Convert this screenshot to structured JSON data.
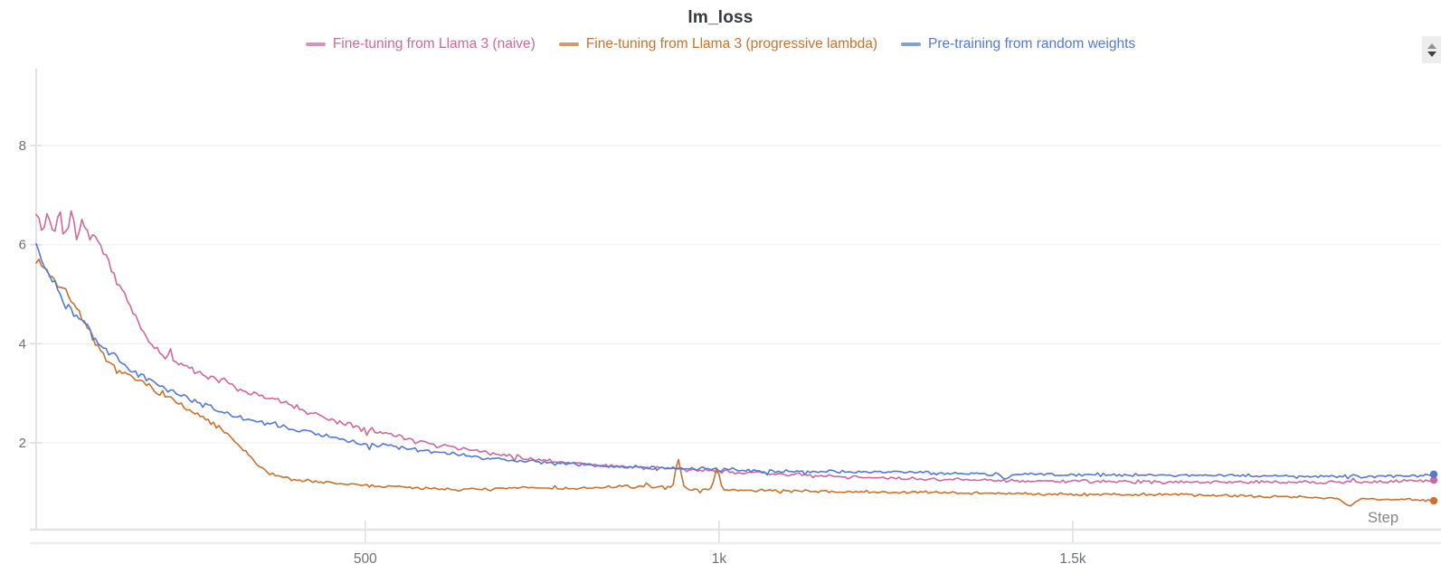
{
  "title": "lm_loss",
  "legend": [
    {
      "label": "Fine-tuning from Llama 3 (naive)",
      "color": "#CF689C"
    },
    {
      "label": "Fine-tuning from Llama 3 (progressive lambda)",
      "color": "#C9722E"
    },
    {
      "label": "Pre-training from random weights",
      "color": "#5379D5"
    }
  ],
  "icons": {
    "stepper": "up-down-arrows"
  },
  "chart_data": {
    "type": "line",
    "title": "lm_loss",
    "xlabel": "Step",
    "ylabel": "",
    "grid": "horizontal",
    "legend_position": "top-center",
    "x_axis": {
      "range": [
        35,
        2010
      ],
      "ticks": [
        {
          "value": 500,
          "label": "500"
        },
        {
          "value": 1000,
          "label": "1k"
        },
        {
          "value": 1500,
          "label": "1.5k"
        }
      ]
    },
    "y_axis": {
      "range": [
        0.25,
        9.55
      ],
      "ticks": [
        {
          "value": 2,
          "label": "2"
        },
        {
          "value": 4,
          "label": "4"
        },
        {
          "value": 6,
          "label": "6"
        },
        {
          "value": 8,
          "label": "8"
        }
      ]
    },
    "series": [
      {
        "name": "Fine-tuning from Llama 3 (naive)",
        "color": "#CF689C",
        "end_dot": true,
        "points": [
          [
            35,
            6.6
          ],
          [
            44,
            6.3
          ],
          [
            52,
            6.45
          ],
          [
            60,
            6.28
          ],
          [
            68,
            6.42
          ],
          [
            76,
            6.22
          ],
          [
            85,
            6.38
          ],
          [
            93,
            6.2
          ],
          [
            101,
            6.32
          ],
          [
            110,
            6.15
          ],
          [
            118,
            6.2
          ],
          [
            128,
            5.9
          ],
          [
            140,
            5.55
          ],
          [
            152,
            5.2
          ],
          [
            164,
            4.85
          ],
          [
            176,
            4.5
          ],
          [
            188,
            4.2
          ],
          [
            200,
            3.95
          ],
          [
            214,
            3.8
          ],
          [
            228,
            3.68
          ],
          [
            239,
            3.6
          ],
          [
            256,
            3.48
          ],
          [
            274,
            3.35
          ],
          [
            290,
            3.28
          ],
          [
            303,
            3.22
          ],
          [
            320,
            3.1
          ],
          [
            340,
            3.0
          ],
          [
            367,
            2.9
          ],
          [
            395,
            2.74
          ],
          [
            420,
            2.62
          ],
          [
            445,
            2.5
          ],
          [
            470,
            2.4
          ],
          [
            495,
            2.32
          ],
          [
            525,
            2.2
          ],
          [
            559,
            2.1
          ],
          [
            590,
            2.0
          ],
          [
            623,
            1.92
          ],
          [
            655,
            1.85
          ],
          [
            687,
            1.78
          ],
          [
            725,
            1.7
          ],
          [
            760,
            1.64
          ],
          [
            800,
            1.59
          ],
          [
            850,
            1.53
          ],
          [
            900,
            1.49
          ],
          [
            942,
            1.47
          ],
          [
            1000,
            1.42
          ],
          [
            1070,
            1.39
          ],
          [
            1140,
            1.33
          ],
          [
            1198,
            1.3
          ],
          [
            1260,
            1.28
          ],
          [
            1326,
            1.26
          ],
          [
            1400,
            1.24
          ],
          [
            1454,
            1.23
          ],
          [
            1550,
            1.22
          ],
          [
            1646,
            1.21
          ],
          [
            1750,
            1.21
          ],
          [
            1838,
            1.2
          ],
          [
            1930,
            1.21
          ],
          [
            2010,
            1.24
          ]
        ],
        "spikes": [
          {
            "at": 52,
            "amp": 0.28,
            "w": 3
          },
          {
            "at": 68,
            "amp": 0.3,
            "w": 3
          },
          {
            "at": 85,
            "amp": 0.26,
            "w": 3
          },
          {
            "at": 101,
            "amp": 0.22,
            "w": 3
          }
        ]
      },
      {
        "name": "Fine-tuning from Llama 3 (progressive lambda)",
        "color": "#C9722E",
        "end_dot": true,
        "points": [
          [
            35,
            5.75
          ],
          [
            48,
            5.5
          ],
          [
            58,
            5.32
          ],
          [
            72,
            5.12
          ],
          [
            85,
            4.9
          ],
          [
            97,
            4.6
          ],
          [
            110,
            4.25
          ],
          [
            124,
            3.85
          ],
          [
            136,
            3.62
          ],
          [
            146,
            3.52
          ],
          [
            166,
            3.35
          ],
          [
            188,
            3.2
          ],
          [
            210,
            3.02
          ],
          [
            230,
            2.85
          ],
          [
            252,
            2.65
          ],
          [
            274,
            2.48
          ],
          [
            294,
            2.3
          ],
          [
            312,
            2.08
          ],
          [
            330,
            1.82
          ],
          [
            348,
            1.55
          ],
          [
            367,
            1.38
          ],
          [
            390,
            1.28
          ],
          [
            415,
            1.24
          ],
          [
            431,
            1.21
          ],
          [
            460,
            1.18
          ],
          [
            495,
            1.15
          ],
          [
            530,
            1.12
          ],
          [
            559,
            1.1
          ],
          [
            600,
            1.08
          ],
          [
            640,
            1.06
          ],
          [
            687,
            1.07
          ],
          [
            730,
            1.1
          ],
          [
            770,
            1.08
          ],
          [
            815,
            1.08
          ],
          [
            860,
            1.12
          ],
          [
            900,
            1.12
          ],
          [
            942,
            1.08
          ],
          [
            1000,
            1.05
          ],
          [
            1070,
            1.04
          ],
          [
            1130,
            1.02
          ],
          [
            1198,
            1.01
          ],
          [
            1260,
            1.0
          ],
          [
            1326,
            1.0
          ],
          [
            1400,
            0.98
          ],
          [
            1454,
            0.97
          ],
          [
            1550,
            0.96
          ],
          [
            1646,
            0.95
          ],
          [
            1750,
            0.93
          ],
          [
            1838,
            0.9
          ],
          [
            1920,
            0.87
          ],
          [
            2010,
            0.84
          ]
        ],
        "spikes": [
          {
            "at": 942,
            "amp": 0.62,
            "w": 5
          },
          {
            "at": 997,
            "amp": 0.42,
            "w": 5
          },
          {
            "at": 1890,
            "amp": -0.16,
            "w": 10
          }
        ]
      },
      {
        "name": "Pre-training from random weights",
        "color": "#5379D5",
        "end_dot": true,
        "points": [
          [
            35,
            6.05
          ],
          [
            42,
            5.75
          ],
          [
            50,
            5.45
          ],
          [
            58,
            5.25
          ],
          [
            68,
            5.0
          ],
          [
            80,
            4.75
          ],
          [
            92,
            4.55
          ],
          [
            105,
            4.35
          ],
          [
            118,
            4.1
          ],
          [
            130,
            3.9
          ],
          [
            146,
            3.72
          ],
          [
            166,
            3.5
          ],
          [
            188,
            3.33
          ],
          [
            210,
            3.15
          ],
          [
            230,
            3.04
          ],
          [
            252,
            2.9
          ],
          [
            274,
            2.76
          ],
          [
            294,
            2.64
          ],
          [
            316,
            2.52
          ],
          [
            340,
            2.45
          ],
          [
            367,
            2.38
          ],
          [
            400,
            2.28
          ],
          [
            431,
            2.18
          ],
          [
            465,
            2.08
          ],
          [
            495,
            2.0
          ],
          [
            530,
            1.94
          ],
          [
            559,
            1.9
          ],
          [
            600,
            1.82
          ],
          [
            623,
            1.78
          ],
          [
            660,
            1.71
          ],
          [
            687,
            1.67
          ],
          [
            730,
            1.62
          ],
          [
            770,
            1.58
          ],
          [
            815,
            1.56
          ],
          [
            860,
            1.52
          ],
          [
            900,
            1.5
          ],
          [
            942,
            1.49
          ],
          [
            1000,
            1.46
          ],
          [
            1070,
            1.44
          ],
          [
            1140,
            1.42
          ],
          [
            1198,
            1.41
          ],
          [
            1260,
            1.4
          ],
          [
            1326,
            1.39
          ],
          [
            1400,
            1.37
          ],
          [
            1454,
            1.36
          ],
          [
            1550,
            1.35
          ],
          [
            1646,
            1.35
          ],
          [
            1750,
            1.34
          ],
          [
            1838,
            1.33
          ],
          [
            1930,
            1.33
          ],
          [
            2010,
            1.34
          ]
        ],
        "spikes": [
          {
            "at": 1405,
            "amp": -0.12,
            "w": 4
          }
        ]
      }
    ]
  }
}
